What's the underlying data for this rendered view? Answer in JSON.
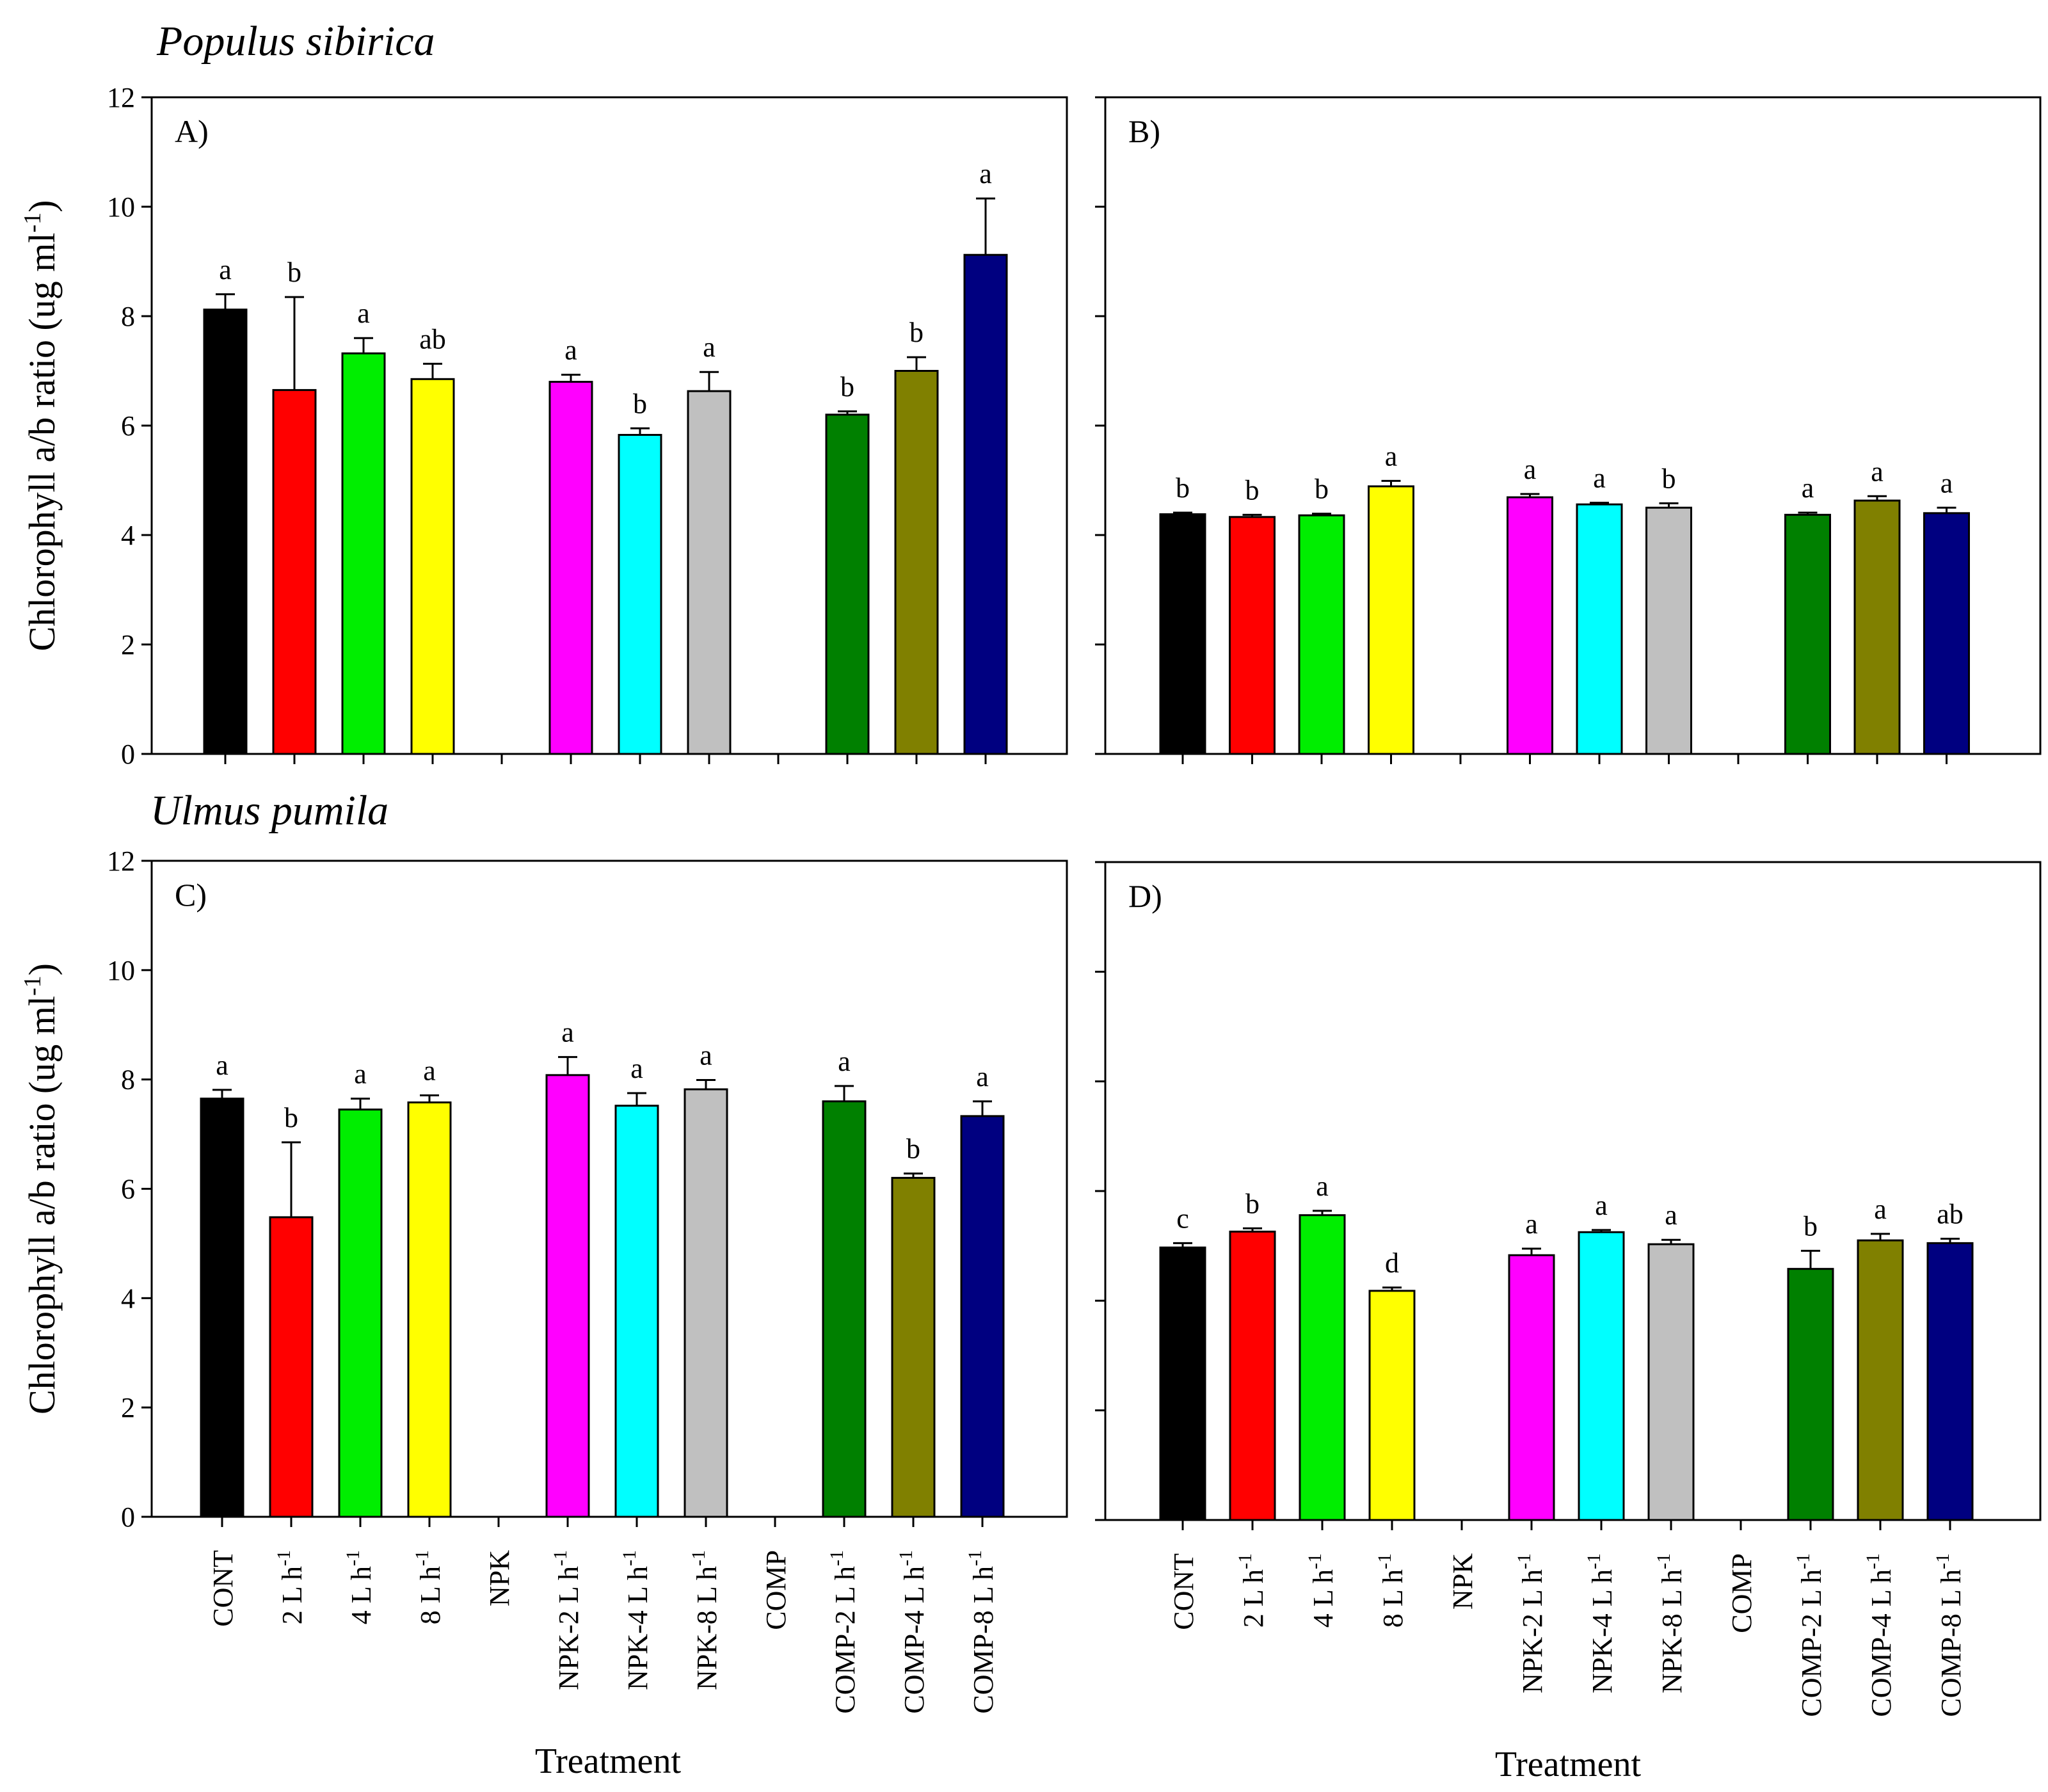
{
  "colors": [
    "#000000",
    "#ff0000",
    "#00ee00",
    "#ffff00",
    null,
    "#ff00ff",
    "#00ffff",
    "#c0c0c0",
    null,
    "#008000",
    "#808000",
    "#000080"
  ],
  "chart_data": [
    {
      "type": "bar",
      "panel": "A)",
      "species": "Populus sibirica",
      "categories": [
        "CONT",
        "2 L h-1",
        "4 L h-1",
        "8 L h-1",
        "NPK",
        "NPK-2 L h-1",
        "NPK-4 L h-1",
        "NPK-8 L h-1",
        "COMP",
        "COMP-2 L h-1",
        "COMP-4 L h-1",
        "COMP-8 L h-1"
      ],
      "values": [
        8.12,
        6.65,
        7.32,
        6.85,
        null,
        6.8,
        5.83,
        6.63,
        null,
        6.2,
        7.0,
        9.12
      ],
      "errors": [
        0.28,
        1.7,
        0.28,
        0.28,
        null,
        0.13,
        0.12,
        0.35,
        null,
        0.06,
        0.25,
        1.03
      ],
      "letters": [
        "a",
        "b",
        "a",
        "ab",
        "",
        "a",
        "b",
        "a",
        "",
        "b",
        "b",
        "a"
      ],
      "ylabel": "Chlorophyll a/b ratio (ug ml-1)",
      "xlabel": "",
      "ylim": [
        0,
        12
      ],
      "yticks": [
        "0",
        "2",
        "4",
        "6",
        "8",
        "10",
        "12"
      ]
    },
    {
      "type": "bar",
      "panel": "B)",
      "species": "",
      "categories": [
        "CONT",
        "2 L h-1",
        "4 L h-1",
        "8 L h-1",
        "NPK",
        "NPK-2 L h-1",
        "NPK-4 L h-1",
        "NPK-8 L h-1",
        "COMP",
        "COMP-2 L h-1",
        "COMP-4 L h-1",
        "COMP-8 L h-1"
      ],
      "values": [
        4.38,
        4.33,
        4.36,
        4.89,
        null,
        4.69,
        4.56,
        4.5,
        null,
        4.37,
        4.63,
        4.4
      ],
      "errors": [
        0.03,
        0.04,
        0.03,
        0.1,
        null,
        0.06,
        0.03,
        0.08,
        null,
        0.04,
        0.08,
        0.1
      ],
      "letters": [
        "b",
        "b",
        "b",
        "a",
        "",
        "a",
        "a",
        "b",
        "",
        "a",
        "a",
        "a"
      ],
      "ylabel": "",
      "xlabel": "",
      "ylim": [
        0,
        12
      ]
    },
    {
      "type": "bar",
      "panel": "C)",
      "species": "Ulmus pumila",
      "categories": [
        "CONT",
        "2 L h-1",
        "4 L h-1",
        "8 L h-1",
        "NPK",
        "NPK-2 L h-1",
        "NPK-4 L h-1",
        "NPK-8 L h-1",
        "COMP",
        "COMP-2 L h-1",
        "COMP-4 L h-1",
        "COMP-8 L h-1"
      ],
      "values": [
        7.65,
        5.48,
        7.45,
        7.58,
        null,
        8.08,
        7.52,
        7.82,
        null,
        7.6,
        6.2,
        7.33
      ],
      "errors": [
        0.16,
        1.37,
        0.2,
        0.13,
        null,
        0.33,
        0.23,
        0.17,
        null,
        0.28,
        0.08,
        0.27
      ],
      "letters": [
        "a",
        "b",
        "a",
        "a",
        "",
        "a",
        "a",
        "a",
        "",
        "a",
        "b",
        "a"
      ],
      "ylabel": "Chlorophyll a/b ratio (ug ml-1)",
      "xlabel": "Treatment",
      "ylim": [
        0,
        12
      ],
      "yticks": [
        "0",
        "2",
        "4",
        "6",
        "8",
        "10",
        "12"
      ]
    },
    {
      "type": "bar",
      "panel": "D)",
      "species": "",
      "categories": [
        "CONT",
        "2 L h-1",
        "4 L h-1",
        "8 L h-1",
        "NPK",
        "NPK-2 L h-1",
        "NPK-4 L h-1",
        "NPK-8 L h-1",
        "COMP",
        "COMP-2 L h-1",
        "COMP-4 L h-1",
        "COMP-8 L h-1"
      ],
      "values": [
        4.97,
        5.26,
        5.56,
        4.18,
        null,
        4.83,
        5.25,
        5.03,
        null,
        4.58,
        5.1,
        5.05
      ],
      "errors": [
        0.08,
        0.06,
        0.08,
        0.06,
        null,
        0.12,
        0.04,
        0.08,
        null,
        0.33,
        0.12,
        0.08
      ],
      "letters": [
        "c",
        "b",
        "a",
        "d",
        "",
        "a",
        "a",
        "a",
        "",
        "b",
        "a",
        "ab"
      ],
      "ylabel": "",
      "xlabel": "Treatment",
      "ylim": [
        0,
        12
      ]
    }
  ]
}
